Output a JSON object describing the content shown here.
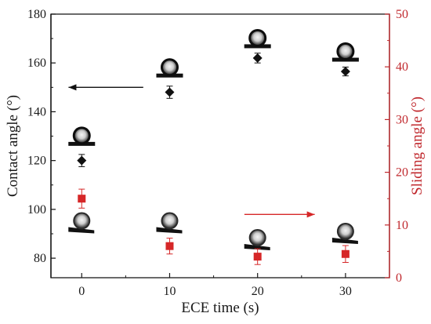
{
  "chart_data": {
    "type": "scatter",
    "title": "",
    "xlabel": "ECE time (s)",
    "ylabel_left": "Contact angle (°)",
    "ylabel_right": "Sliding angle (°)",
    "x_ticks": [
      "0",
      "10",
      "20",
      "30"
    ],
    "y_left_ticks": [
      "80",
      "100",
      "120",
      "140",
      "160",
      "180"
    ],
    "y_right_ticks": [
      "0",
      "10",
      "20",
      "30",
      "40",
      "50"
    ],
    "xlim": [
      -3.5,
      35
    ],
    "ylim_left": [
      72,
      180
    ],
    "ylim_right": [
      0,
      50
    ],
    "grid": false,
    "series": [
      {
        "axis": "left",
        "marker": "diamond",
        "color": "#111111",
        "x": [
          0,
          10,
          20,
          30
        ],
        "y": [
          120,
          148,
          162,
          156.5
        ],
        "err": [
          2.5,
          2.5,
          2,
          1.8
        ]
      },
      {
        "axis": "right",
        "marker": "square",
        "color": "#d62728",
        "x": [
          0,
          10,
          20,
          30
        ],
        "y": [
          15,
          6,
          4,
          4.5
        ],
        "err": [
          1.8,
          1.5,
          1.5,
          1.6
        ]
      }
    ],
    "droplet_icons_contact": [
      {
        "x": 0,
        "y": 127
      },
      {
        "x": 10,
        "y": 155
      },
      {
        "x": 20,
        "y": 167
      },
      {
        "x": 30,
        "y": 161.5
      }
    ],
    "droplet_icons_sliding": [
      {
        "x": 0,
        "y": 9
      },
      {
        "x": 10,
        "y": 9
      },
      {
        "x": 20,
        "y": 5.8
      },
      {
        "x": 30,
        "y": 7
      }
    ],
    "arrows": [
      {
        "direction": "left",
        "axis": "left",
        "x_from": 7,
        "x_to": -1.5,
        "y": 150,
        "color": "#111111"
      },
      {
        "direction": "right",
        "axis": "right",
        "x_from": 18.5,
        "x_to": 26.5,
        "y": 12,
        "color": "#d62728"
      }
    ],
    "colors": {
      "left_axis": "#111111",
      "right_axis": "#c0282d"
    }
  }
}
